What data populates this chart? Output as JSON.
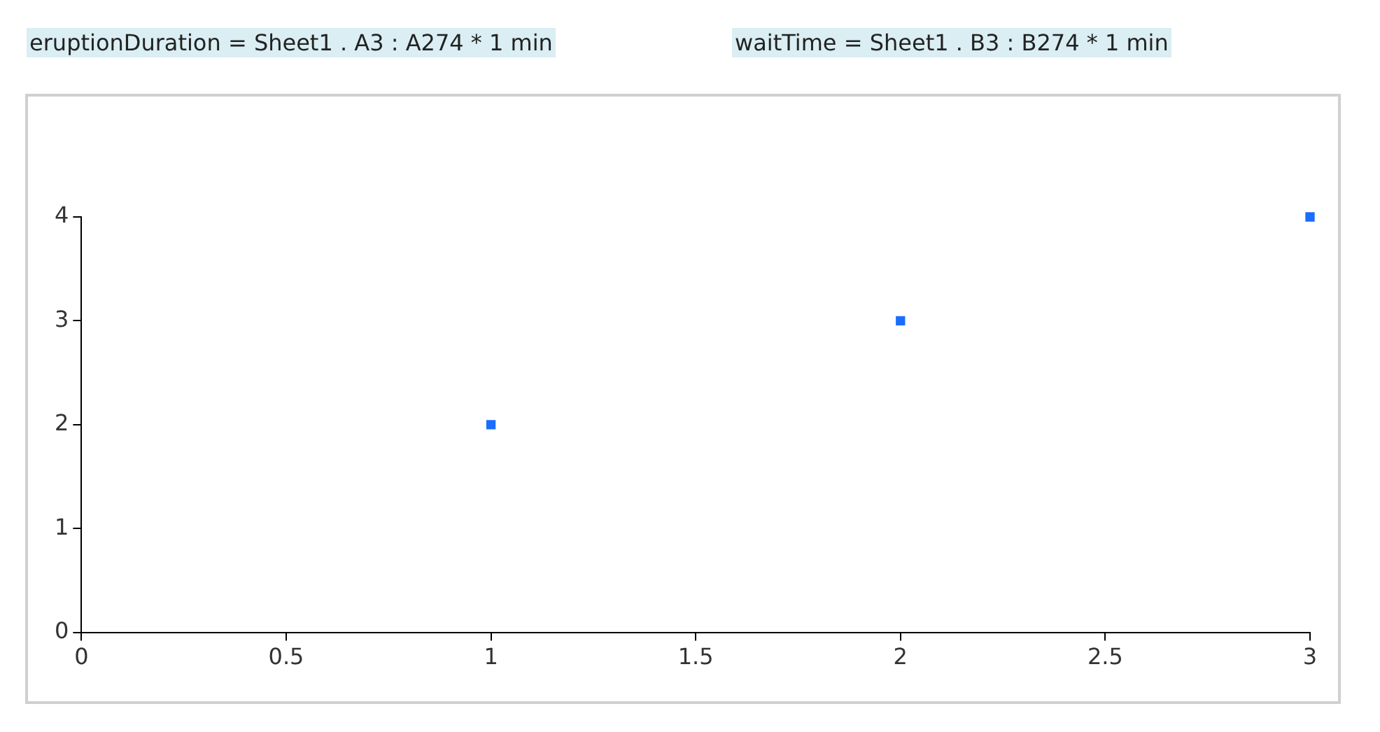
{
  "chart_data": {
    "type": "scatter",
    "annotations": [
      "eruptionDuration = Sheet1 . A3 : A274 * 1 min",
      "waitTime = Sheet1 . B3 : B274 * 1 min"
    ],
    "x": [
      1,
      2,
      3
    ],
    "series": [
      {
        "color": "#1a6dff",
        "values": [
          2,
          3,
          4
        ]
      }
    ],
    "xlim": [
      0,
      3
    ],
    "xticks": [
      0,
      0.5,
      1,
      1.5,
      2,
      2.5,
      3
    ],
    "ylim": [
      0,
      4
    ],
    "yticks": [
      0,
      1,
      2,
      3,
      4
    ],
    "grid": false,
    "legend": false,
    "marker": "square"
  }
}
